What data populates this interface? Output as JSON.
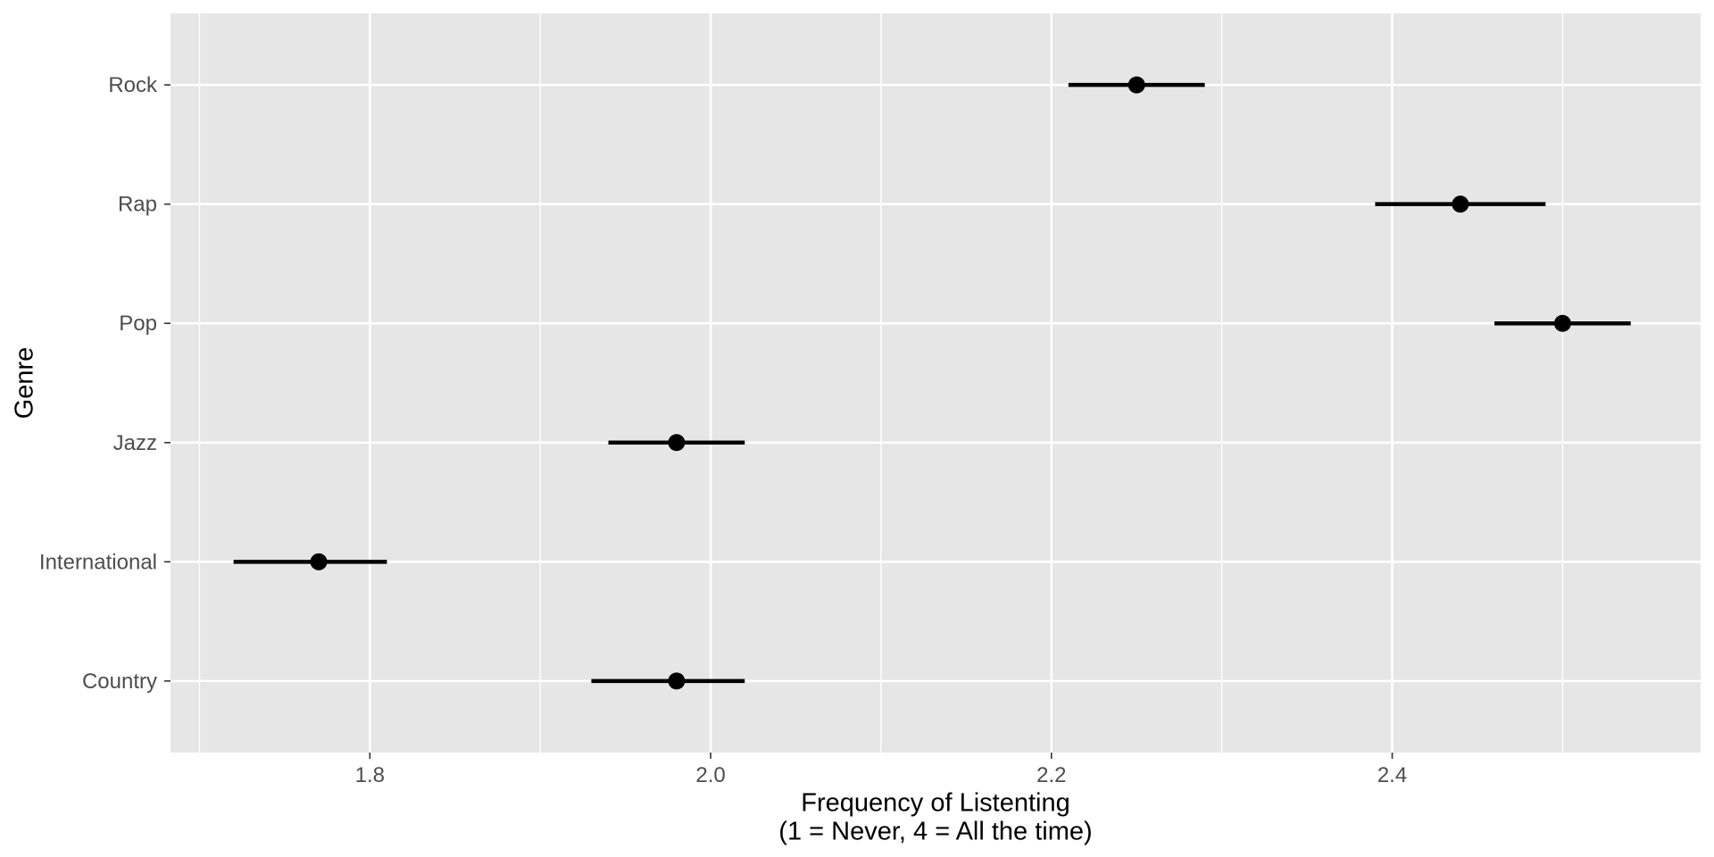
{
  "chart_data": {
    "type": "scatter",
    "subtype": "dot-plot-with-horizontal-error-bars",
    "title": "",
    "xlabel_line1": "Frequency of Listenting",
    "xlabel_line2": "(1 = Never, 4 = All the time)",
    "ylabel": "Genre",
    "categories": [
      "Rock",
      "Rap",
      "Pop",
      "Jazz",
      "International",
      "Country"
    ],
    "series": [
      {
        "name": "mean_frequency",
        "values": [
          2.25,
          2.44,
          2.5,
          1.98,
          1.77,
          1.98
        ],
        "error_low": [
          2.21,
          2.39,
          2.46,
          1.94,
          1.72,
          1.93
        ],
        "error_high": [
          2.29,
          2.49,
          2.54,
          2.02,
          1.81,
          2.02
        ]
      }
    ],
    "xlim": [
      1.683,
      2.581
    ],
    "x_ticks": [
      1.8,
      2.0,
      2.2,
      2.4
    ],
    "x_tick_labels": [
      "1.8",
      "2.0",
      "2.2",
      "2.4"
    ],
    "x_minor_gridlines": [
      1.7,
      1.9,
      2.1,
      2.3,
      2.5
    ],
    "grid": "white major gridlines x+y, white minor gridlines x only, on grey panel",
    "legend": "none"
  },
  "colors": {
    "page_background": "#FFFFFF",
    "panel_background": "#E6E6E6",
    "gridline": "#FFFFFF",
    "data": "#000000",
    "axis_tick_text": "#4D4D4D",
    "axis_title_text": "#000000",
    "tick_mark": "#333333"
  }
}
